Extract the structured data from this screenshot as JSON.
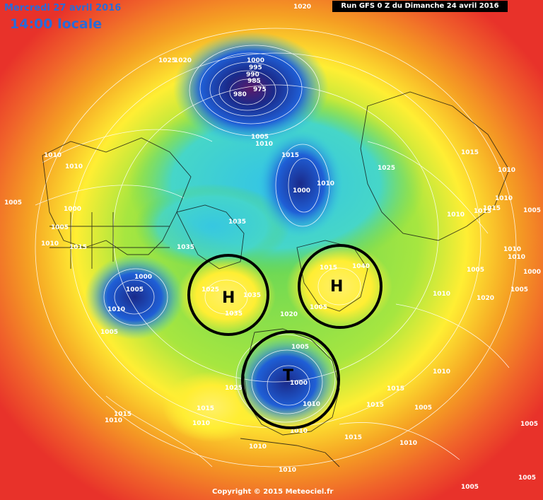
{
  "header": {
    "date": "Mercredi 27 avril 2016",
    "time": "14:00 locale",
    "run": "Run GFS 0 Z du Dimanche 24 avril 2016"
  },
  "footer": {
    "copyright": "Copyright © 2015 Meteociel.fr"
  },
  "pressure_centers": [
    {
      "label": "H",
      "kind": "high"
    },
    {
      "label": "H",
      "kind": "high"
    },
    {
      "label": "T",
      "kind": "low"
    }
  ],
  "isobar_labels": [
    "1020",
    "1025",
    "1020",
    "1000",
    "995",
    "990",
    "985",
    "980",
    "975",
    "1005",
    "1010",
    "1015",
    "1010",
    "1025",
    "1010",
    "1015",
    "1010",
    "1005",
    "1010",
    "1000",
    "1005",
    "1010",
    "1015",
    "1035",
    "1035",
    "1010",
    "1015",
    "1040",
    "1015",
    "1010",
    "1005",
    "1000",
    "1010",
    "1005",
    "1025",
    "1035",
    "1035",
    "1000",
    "1005",
    "1010",
    "1005",
    "1020",
    "1020",
    "1005",
    "1000",
    "1010",
    "1025",
    "1015",
    "1010",
    "1015",
    "1010",
    "1010",
    "1010",
    "1015",
    "1010",
    "1005",
    "1010",
    "1010",
    "1015",
    "1005",
    "1015",
    "1000",
    "1005",
    "1005",
    "1015",
    "1010",
    "1010",
    "1005",
    "1005"
  ],
  "colors": {
    "outer_red": "#e8322a",
    "orange": "#f57a22",
    "yellow": "#ffee33",
    "green": "#5fd55a",
    "cyan": "#33c4e6",
    "blue": "#1f5fd6",
    "dark_blue": "#1a2a8a",
    "purple": "#5a1a6a"
  }
}
